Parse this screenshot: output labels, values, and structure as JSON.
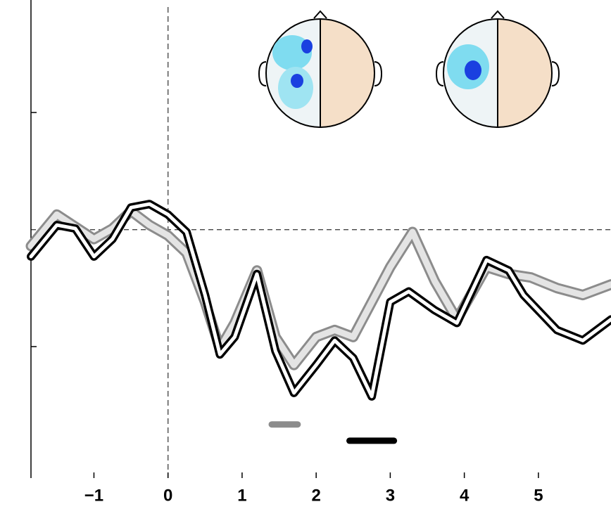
{
  "chart_data": {
    "type": "line",
    "xlim": [
      -1.85,
      5.98
    ],
    "ylim": [
      -2.13,
      1.97
    ],
    "xticks": [
      {
        "value": -1,
        "label": "−1"
      },
      0,
      1,
      2,
      3,
      4,
      5
    ],
    "series": [
      {
        "color": "#8c8c8c",
        "x": [
          -1.85,
          -1.5,
          -1.0,
          -0.75,
          -0.5,
          -0.25,
          0,
          0.25,
          0.5,
          0.7,
          0.9,
          1.2,
          1.45,
          1.7,
          2.0,
          2.25,
          2.5,
          2.75,
          3.0,
          3.3,
          3.6,
          3.9,
          4.3,
          4.6,
          4.9,
          5.25,
          5.6,
          5.98
        ],
        "values": [
          -0.14,
          0.13,
          -0.08,
          0.01,
          0.16,
          0.04,
          -0.05,
          -0.2,
          -0.62,
          -1.02,
          -0.8,
          -0.35,
          -0.92,
          -1.16,
          -0.92,
          -0.86,
          -0.92,
          -0.62,
          -0.32,
          -0.02,
          -0.44,
          -0.77,
          -0.32,
          -0.38,
          -0.41,
          -0.5,
          -0.56,
          -0.47
        ],
        "interval": [
          1.4,
          1.75
        ],
        "interval_y": -1.67
      },
      {
        "color": "#000000",
        "x": [
          -1.85,
          -1.5,
          -1.25,
          -1.0,
          -0.75,
          -0.5,
          -0.25,
          0,
          0.25,
          0.5,
          0.7,
          0.9,
          1.2,
          1.45,
          1.7,
          2.0,
          2.25,
          2.5,
          2.75,
          3.0,
          3.25,
          3.6,
          3.9,
          4.3,
          4.6,
          4.8,
          5.25,
          5.6,
          5.98
        ],
        "values": [
          -0.23,
          0.04,
          0.01,
          -0.23,
          -0.08,
          0.19,
          0.22,
          0.13,
          -0.02,
          -0.56,
          -1.07,
          -0.92,
          -0.38,
          -1.04,
          -1.4,
          -1.16,
          -0.95,
          -1.1,
          -1.43,
          -0.62,
          -0.53,
          -0.69,
          -0.8,
          -0.26,
          -0.35,
          -0.56,
          -0.86,
          -0.95,
          -0.77
        ],
        "interval": [
          2.45,
          3.05
        ],
        "interval_y": -1.81
      }
    ]
  }
}
